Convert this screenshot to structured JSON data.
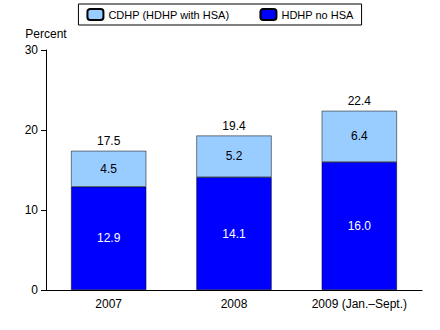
{
  "chart_data": {
    "type": "bar",
    "stacked": true,
    "data_labels": true,
    "grid": false,
    "y_label": "Percent",
    "categories": [
      "2007",
      "2008",
      "2009 (Jan.–Sept.)"
    ],
    "series": [
      {
        "name": "HDHP no HSA",
        "color": "#0000ff",
        "values": [
          12.9,
          14.1,
          16.0
        ],
        "value_labels": [
          "12.9",
          "14.1",
          "16.0"
        ]
      },
      {
        "name": "CDHP (HDHP with HSA)",
        "color": "#99ccff",
        "values": [
          4.5,
          5.2,
          6.4
        ],
        "value_labels": [
          "4.5",
          "5.2",
          "6.4"
        ]
      }
    ],
    "totals": [
      17.5,
      19.4,
      22.4
    ],
    "ylim": [
      0,
      30
    ],
    "yticks": [
      0,
      10,
      20,
      30
    ]
  }
}
